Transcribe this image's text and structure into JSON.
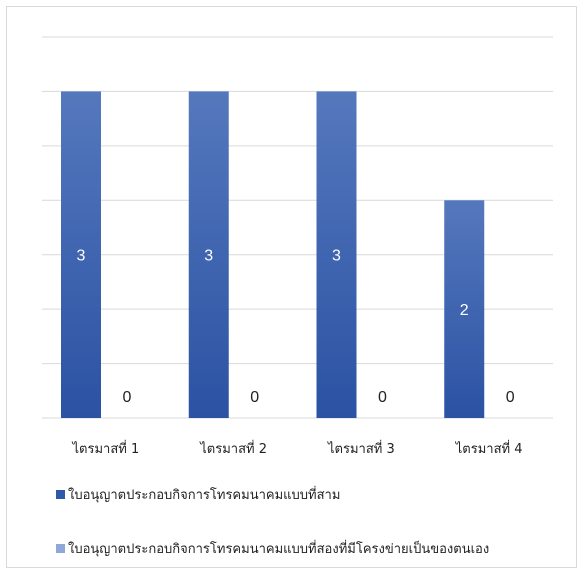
{
  "chart_data": {
    "type": "bar",
    "categories": [
      "ไตรมาสที่ 1",
      "ไตรมาสที่ 2",
      "ไตรมาสที่ 3",
      "ไตรมาสที่ 4"
    ],
    "series": [
      {
        "name": "ใบอนุญาตประกอบกิจการโทรคมนาคมแบบที่สาม",
        "values": [
          3,
          3,
          3,
          2
        ],
        "color": "#2e58a8"
      },
      {
        "name": "ใบอนุญาตประกอบกิจการโทรคมนาคมแบบที่สองที่มีโครงข่ายเป็นของตนเอง",
        "values": [
          0,
          0,
          0,
          0
        ],
        "color": "#8fa8d8"
      }
    ],
    "ylim": [
      0,
      3.5
    ],
    "grid": true,
    "data_labels": true,
    "legend_position": "bottom"
  }
}
